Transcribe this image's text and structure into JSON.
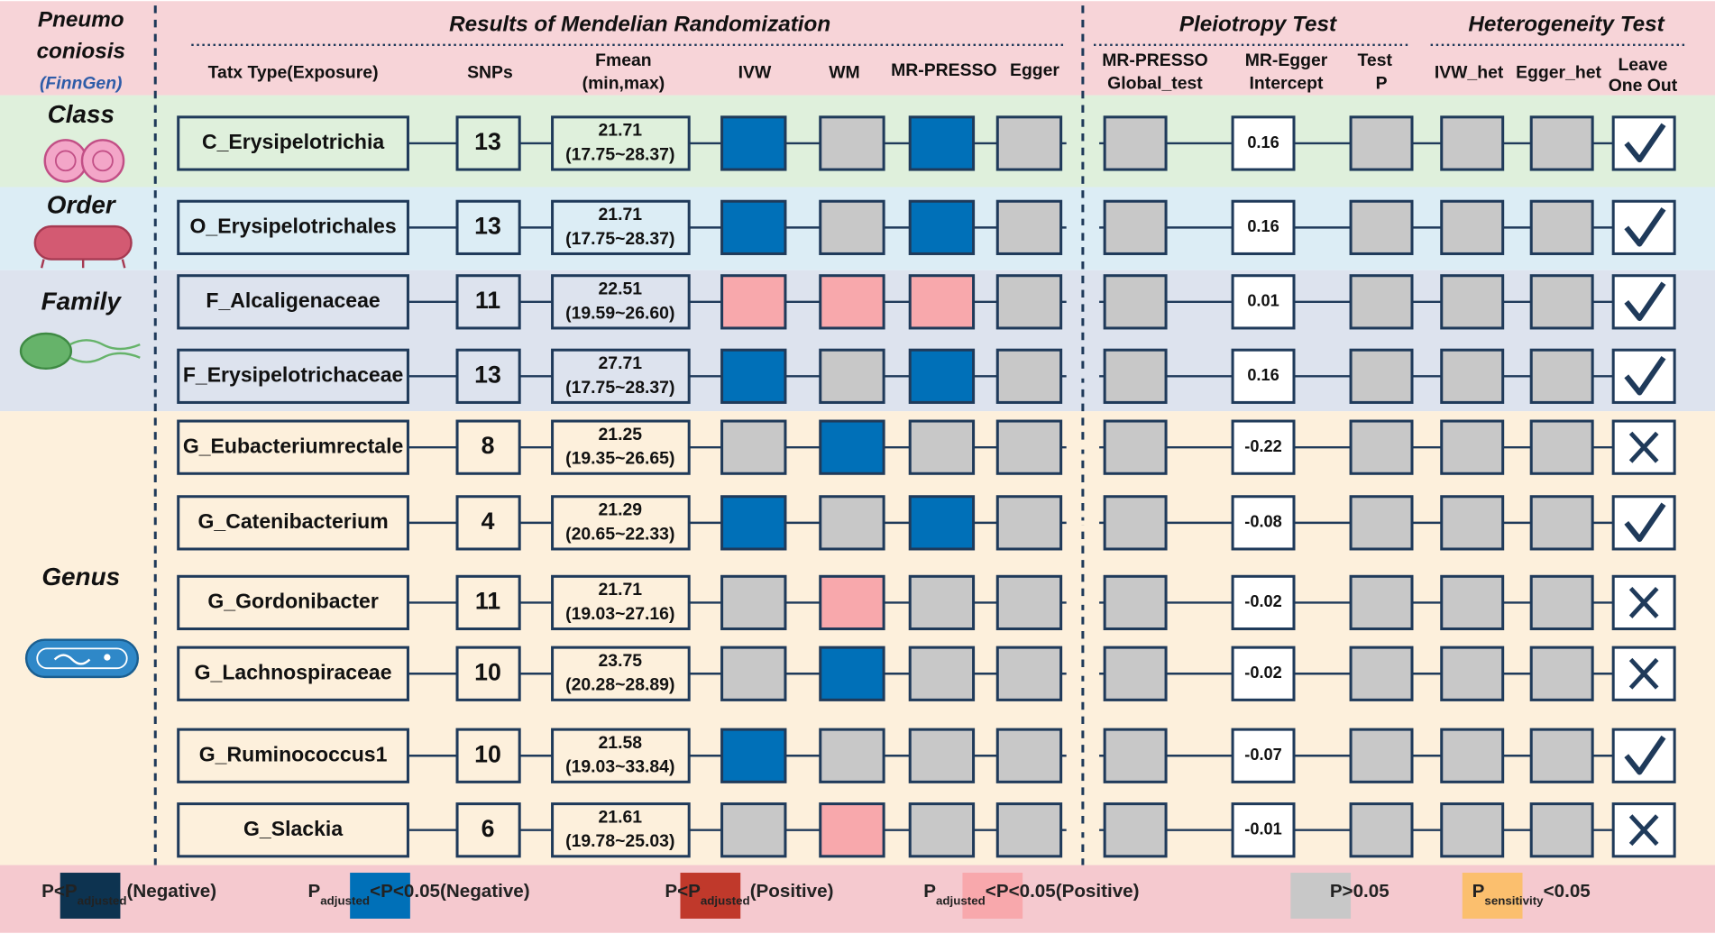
{
  "left_header": {
    "lines": [
      "Pneumo",
      "coniosis"
    ],
    "source": "(FinnGen)"
  },
  "sections": [
    "Results of Mendelian Randomization",
    "Pleiotropy Test",
    "Heterogeneity Test"
  ],
  "columns": {
    "type": "Tatx Type(Exposure)",
    "snps": "SNPs",
    "fmean": [
      "Fmean",
      "(min,max)"
    ],
    "ivw": "IVW",
    "wm": "WM",
    "presso": "MR-PRESSO",
    "egger": "Egger",
    "global": [
      "MR-PRESSO",
      "Global_test"
    ],
    "intercept": [
      "MR-Egger",
      "Intercept"
    ],
    "test_p": [
      "Test",
      "P"
    ],
    "ivw_het": "IVW_het",
    "egger_het": "Egger_het",
    "loo": [
      "Leave",
      "One Out"
    ]
  },
  "groups": [
    {
      "label": "Class",
      "color": "#dff0dc",
      "rows": [
        {
          "name": "C_Erysipelotrichia",
          "snps": 13,
          "fmean": 21.71,
          "range": "(17.75~28.37)",
          "mr_cells": [
            "#0070b8",
            "#c8c8c8",
            "#0070b8",
            "#c8c8c8"
          ],
          "intercept": 0.16,
          "sens_cells": [
            "#c8c8c8",
            "#c8c8c8",
            "#c8c8c8",
            "#c8c8c8"
          ],
          "leave_one_out": true
        }
      ]
    },
    {
      "label": "Order",
      "color": "#dcedf5",
      "rows": [
        {
          "name": "O_Erysipelotrichales",
          "snps": 13,
          "fmean": 21.71,
          "range": "(17.75~28.37)",
          "mr_cells": [
            "#0070b8",
            "#c8c8c8",
            "#0070b8",
            "#c8c8c8"
          ],
          "intercept": 0.16,
          "sens_cells": [
            "#c8c8c8",
            "#c8c8c8",
            "#c8c8c8",
            "#c8c8c8"
          ],
          "leave_one_out": true
        }
      ]
    },
    {
      "label": "Family",
      "color": "#dde3ee",
      "rows": [
        {
          "name": "F_Alcaligenaceae",
          "snps": 11,
          "fmean": 22.51,
          "range": "(19.59~26.60)",
          "mr_cells": [
            "#f8a8ac",
            "#f8a8ac",
            "#f8a8ac",
            "#c8c8c8"
          ],
          "intercept": 0.01,
          "sens_cells": [
            "#c8c8c8",
            "#c8c8c8",
            "#c8c8c8",
            "#c8c8c8"
          ],
          "leave_one_out": true
        },
        {
          "name": "F_Erysipelotrichaceae",
          "snps": 13,
          "fmean": 27.71,
          "range": "(17.75~28.37)",
          "mr_cells": [
            "#0070b8",
            "#c8c8c8",
            "#0070b8",
            "#c8c8c8"
          ],
          "intercept": 0.16,
          "sens_cells": [
            "#c8c8c8",
            "#c8c8c8",
            "#c8c8c8",
            "#c8c8c8"
          ],
          "leave_one_out": true
        }
      ]
    },
    {
      "label": "Genus",
      "color": "#fdf0dc",
      "rows": [
        {
          "name": "G_Eubacteriumrectale",
          "snps": 8,
          "fmean": 21.25,
          "range": "(19.35~26.65)",
          "mr_cells": [
            "#c8c8c8",
            "#0070b8",
            "#c8c8c8",
            "#c8c8c8"
          ],
          "intercept": -0.22,
          "sens_cells": [
            "#c8c8c8",
            "#c8c8c8",
            "#c8c8c8",
            "#c8c8c8"
          ],
          "leave_one_out": false
        },
        {
          "name": "G_Catenibacterium",
          "snps": 4,
          "fmean": 21.29,
          "range": "(20.65~22.33)",
          "mr_cells": [
            "#0070b8",
            "#c8c8c8",
            "#0070b8",
            "#c8c8c8"
          ],
          "intercept": -0.08,
          "sens_cells": [
            "#c8c8c8",
            "#c8c8c8",
            "#c8c8c8",
            "#c8c8c8"
          ],
          "leave_one_out": true
        },
        {
          "name": "G_Gordonibacter",
          "snps": 11,
          "fmean": 21.71,
          "range": "(19.03~27.16)",
          "mr_cells": [
            "#c8c8c8",
            "#f8a8ac",
            "#c8c8c8",
            "#c8c8c8"
          ],
          "intercept": -0.02,
          "sens_cells": [
            "#c8c8c8",
            "#c8c8c8",
            "#c8c8c8",
            "#c8c8c8"
          ],
          "leave_one_out": false
        },
        {
          "name": "G_Lachnospiraceae",
          "snps": 10,
          "fmean": 23.75,
          "range": "(20.28~28.89)",
          "mr_cells": [
            "#c8c8c8",
            "#0070b8",
            "#c8c8c8",
            "#c8c8c8"
          ],
          "intercept": -0.02,
          "sens_cells": [
            "#c8c8c8",
            "#c8c8c8",
            "#c8c8c8",
            "#c8c8c8"
          ],
          "leave_one_out": false
        },
        {
          "name": "G_Ruminococcus1",
          "snps": 10,
          "fmean": 21.58,
          "range": "(19.03~33.84)",
          "mr_cells": [
            "#0070b8",
            "#c8c8c8",
            "#c8c8c8",
            "#c8c8c8"
          ],
          "intercept": -0.07,
          "sens_cells": [
            "#c8c8c8",
            "#c8c8c8",
            "#c8c8c8",
            "#c8c8c8"
          ],
          "leave_one_out": true
        },
        {
          "name": "G_Slackia",
          "snps": 6,
          "fmean": 21.61,
          "range": "(19.78~25.03)",
          "mr_cells": [
            "#c8c8c8",
            "#f8a8ac",
            "#c8c8c8",
            "#c8c8c8"
          ],
          "intercept": -0.01,
          "sens_cells": [
            "#c8c8c8",
            "#c8c8c8",
            "#c8c8c8",
            "#c8c8c8"
          ],
          "leave_one_out": false
        }
      ]
    }
  ],
  "legend": [
    {
      "color": "#0d3350",
      "parts": [
        "P<P",
        "adjusted",
        "(Negative)"
      ]
    },
    {
      "color": "#0070b8",
      "parts": [
        "P",
        "adjusted",
        "<P<0.05(Negative)"
      ]
    },
    {
      "color": "#c0392b",
      "parts": [
        "P<P",
        "adjusted",
        "(Positive)"
      ]
    },
    {
      "color": "#f8a8ac",
      "parts": [
        "P",
        "adjusted",
        "<P<0.05(Positive)"
      ]
    },
    {
      "color": "#c8c8c8",
      "parts": [
        "P>0.05"
      ]
    },
    {
      "color": "#fbbf6e",
      "parts": [
        "P",
        "sensitivity",
        "<0.05"
      ]
    }
  ]
}
